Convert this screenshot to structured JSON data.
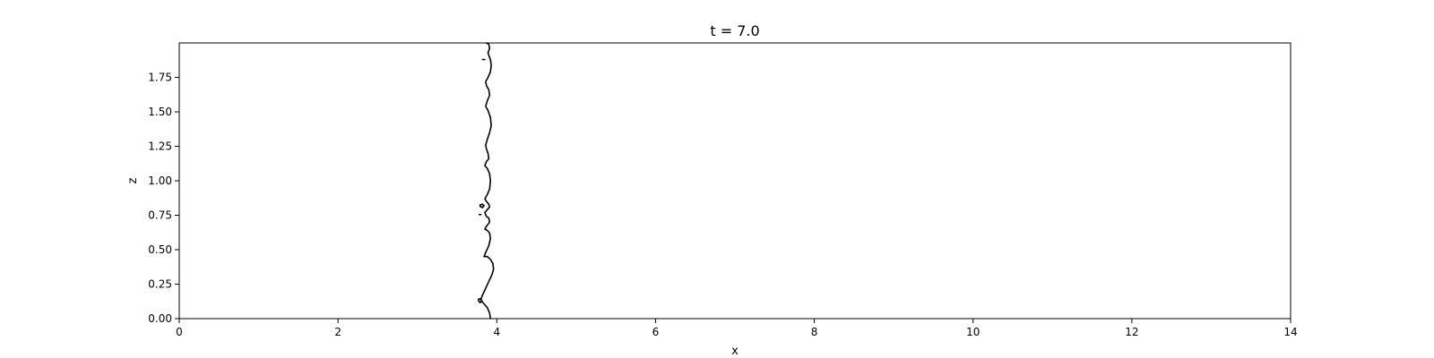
{
  "chart_data": {
    "type": "line",
    "title": "t = 7.0",
    "xlabel": "x",
    "ylabel": "z",
    "xlim": [
      0,
      14
    ],
    "ylim": [
      0,
      2
    ],
    "x_ticks": [
      0,
      2,
      4,
      6,
      8,
      10,
      12,
      14
    ],
    "x_tick_labels": [
      "0",
      "2",
      "4",
      "6",
      "8",
      "10",
      "12",
      "14"
    ],
    "y_ticks": [
      0,
      0.25,
      0.5,
      0.75,
      1.0,
      1.25,
      1.5,
      1.75
    ],
    "y_tick_labels": [
      "0.00",
      "0.25",
      "0.50",
      "0.75",
      "1.00",
      "1.25",
      "1.50",
      "1.75"
    ],
    "grid": false,
    "line_color": "#000000",
    "series": [
      {
        "x": [
          3.92,
          3.91,
          3.88,
          3.85,
          3.82,
          3.8,
          3.82,
          3.86,
          3.9,
          3.94,
          3.96,
          3.95,
          3.92,
          3.88,
          3.84,
          3.86,
          3.9,
          3.92,
          3.91,
          3.88,
          3.85,
          3.87,
          3.91,
          3.9,
          3.87,
          3.85,
          3.88,
          3.91,
          3.9,
          3.87,
          3.85,
          3.88,
          3.91,
          3.92,
          3.91,
          3.88,
          3.85,
          3.87,
          3.9,
          3.89,
          3.87,
          3.86,
          3.88,
          3.91,
          3.93,
          3.92,
          3.89,
          3.86,
          3.88,
          3.91,
          3.9,
          3.87,
          3.86,
          3.89,
          3.92,
          3.93,
          3.92,
          3.9,
          3.89,
          3.91,
          3.9,
          3.87
        ],
        "y": [
          0.0,
          0.04,
          0.08,
          0.1,
          0.12,
          0.14,
          0.17,
          0.22,
          0.27,
          0.32,
          0.36,
          0.4,
          0.43,
          0.45,
          0.45,
          0.48,
          0.53,
          0.58,
          0.62,
          0.64,
          0.65,
          0.67,
          0.7,
          0.73,
          0.74,
          0.77,
          0.79,
          0.81,
          0.83,
          0.85,
          0.87,
          0.9,
          0.94,
          1.0,
          1.05,
          1.09,
          1.11,
          1.14,
          1.16,
          1.2,
          1.23,
          1.26,
          1.3,
          1.35,
          1.4,
          1.46,
          1.51,
          1.54,
          1.58,
          1.62,
          1.66,
          1.69,
          1.72,
          1.75,
          1.79,
          1.84,
          1.88,
          1.91,
          1.93,
          1.96,
          1.99,
          2.0
        ]
      },
      {
        "x": [
          3.77,
          3.79,
          3.81,
          3.79,
          3.77,
          3.77
        ],
        "y": [
          0.13,
          0.115,
          0.13,
          0.145,
          0.14,
          0.13
        ]
      },
      {
        "x": [
          3.79,
          3.82,
          3.84,
          3.82,
          3.79,
          3.79
        ],
        "y": [
          0.815,
          0.805,
          0.82,
          0.83,
          0.825,
          0.815
        ]
      },
      {
        "x": [
          3.78,
          3.8
        ],
        "y": [
          0.755,
          0.755
        ]
      },
      {
        "x": [
          3.82,
          3.85
        ],
        "y": [
          1.88,
          1.88
        ]
      }
    ]
  }
}
